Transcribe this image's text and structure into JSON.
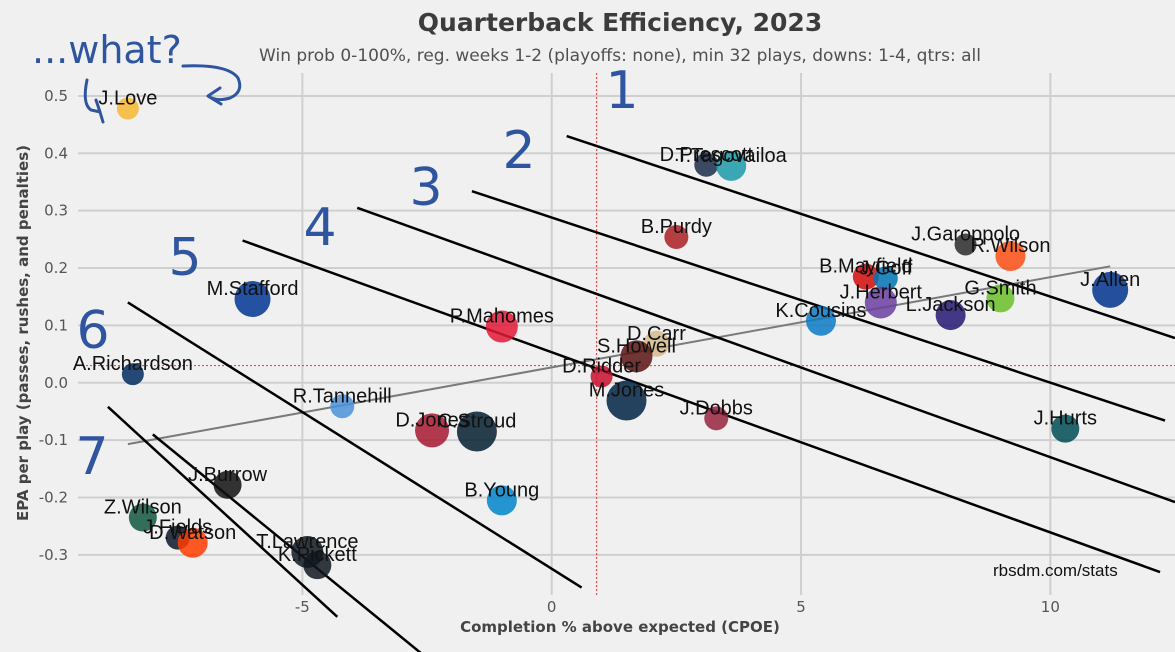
{
  "chart_data": {
    "type": "scatter",
    "title": "Quarterback Efficiency, 2023",
    "subtitle": "Win prob 0-100%, reg. weeks 1-2 (playoffs: none), min 32 plays, downs: 1-4, qtrs: all",
    "xlabel": "Completion % above expected (CPOE)",
    "ylabel": "EPA per play (passes, rushes, and penalties)",
    "xlim": [
      -9.5,
      12.5
    ],
    "ylim": [
      -0.37,
      0.54
    ],
    "xticks": [
      -5,
      0,
      5,
      10
    ],
    "yticks": [
      -0.3,
      -0.2,
      -0.1,
      0.0,
      0.1,
      0.2,
      0.3,
      0.4,
      0.5
    ],
    "xtick_labels": [
      "-5",
      "0",
      "5",
      "10"
    ],
    "ytick_labels": [
      "-0.3",
      "-0.2",
      "-0.1",
      "0.0",
      "0.1",
      "0.2",
      "0.3",
      "0.4",
      "0.5"
    ],
    "grid": true,
    "mean_x": 0.9,
    "mean_y": 0.03,
    "trend_line": [
      [
        -8.5,
        -0.107
      ],
      [
        11.2,
        0.203
      ]
    ],
    "points": [
      {
        "name": "J.Love",
        "x": -8.5,
        "y": 0.478,
        "size": 11,
        "color": "#f7b731"
      },
      {
        "name": "D.Prescott",
        "x": 3.1,
        "y": 0.38,
        "size": 12,
        "color": "#1c2b4a"
      },
      {
        "name": "T.Tagovailoa",
        "x": 3.6,
        "y": 0.378,
        "size": 15,
        "color": "#1b9aaa"
      },
      {
        "name": "B.Purdy",
        "x": 2.5,
        "y": 0.254,
        "size": 12,
        "color": "#aa1e23"
      },
      {
        "name": "J.Garoppolo",
        "x": 8.3,
        "y": 0.241,
        "size": 11,
        "color": "#2a2a2a"
      },
      {
        "name": "R.Wilson",
        "x": 9.2,
        "y": 0.221,
        "size": 15,
        "color": "#fb4f14"
      },
      {
        "name": "B.Mayfield",
        "x": 6.3,
        "y": 0.185,
        "size": 13,
        "color": "#d50a0a"
      },
      {
        "name": "J.Goff",
        "x": 6.7,
        "y": 0.182,
        "size": 12,
        "color": "#0076b6"
      },
      {
        "name": "G.Smith",
        "x": 9.0,
        "y": 0.147,
        "size": 14,
        "color": "#69be28"
      },
      {
        "name": "J.Allen",
        "x": 11.2,
        "y": 0.162,
        "size": 18,
        "color": "#00338d"
      },
      {
        "name": "K.Cousins",
        "x": 5.4,
        "y": 0.108,
        "size": 15,
        "color": "#0a7ac4"
      },
      {
        "name": "L.Jackson",
        "x": 8.0,
        "y": 0.118,
        "size": 15,
        "color": "#241773"
      },
      {
        "name": "M.Stafford",
        "x": -6.0,
        "y": 0.146,
        "size": 18,
        "color": "#003594"
      },
      {
        "name": "P.Mahomes",
        "x": -1.0,
        "y": 0.098,
        "size": 16,
        "color": "#e31837"
      },
      {
        "name": "D.Carr",
        "x": 2.1,
        "y": 0.068,
        "size": 13,
        "color": "#d3bc8d"
      },
      {
        "name": "J.Herbert",
        "x": 6.6,
        "y": 0.14,
        "size": 16,
        "color": "#6b3fa0"
      },
      {
        "name": "S.Howell",
        "x": 1.7,
        "y": 0.046,
        "size": 16,
        "color": "#5a1414"
      },
      {
        "name": "D.Ridder",
        "x": 1.0,
        "y": 0.011,
        "size": 11,
        "color": "#c8102e"
      },
      {
        "name": "A.Richardson",
        "x": -8.4,
        "y": 0.015,
        "size": 11,
        "color": "#002c5f"
      },
      {
        "name": "M.Jones",
        "x": 1.5,
        "y": -0.031,
        "size": 20,
        "color": "#002244"
      },
      {
        "name": "R.Tannehill",
        "x": -4.2,
        "y": -0.041,
        "size": 12,
        "color": "#4b92db"
      },
      {
        "name": "J.Dobbs",
        "x": 3.3,
        "y": -0.062,
        "size": 12,
        "color": "#97233f"
      },
      {
        "name": "J.Hurts",
        "x": 10.3,
        "y": -0.08,
        "size": 14,
        "color": "#004c54"
      },
      {
        "name": "D.Jones",
        "x": -2.4,
        "y": -0.083,
        "size": 17,
        "color": "#a71930"
      },
      {
        "name": "C.Stroud",
        "x": -1.5,
        "y": -0.085,
        "size": 20,
        "color": "#03202f"
      },
      {
        "name": "J.Burrow",
        "x": -6.5,
        "y": -0.178,
        "size": 14,
        "color": "#111111"
      },
      {
        "name": "B.Young",
        "x": -1.0,
        "y": -0.205,
        "size": 15,
        "color": "#0085ca"
      },
      {
        "name": "Z.Wilson",
        "x": -8.2,
        "y": -0.235,
        "size": 14,
        "color": "#125740"
      },
      {
        "name": "J.Fields",
        "x": -7.5,
        "y": -0.27,
        "size": 12,
        "color": "#0b162a"
      },
      {
        "name": "D.Watson",
        "x": -7.2,
        "y": -0.279,
        "size": 15,
        "color": "#ff3c00"
      },
      {
        "name": "T.Lawrence",
        "x": -4.9,
        "y": -0.295,
        "size": 16,
        "color": "#101820"
      },
      {
        "name": "K.Pickett",
        "x": -4.7,
        "y": -0.318,
        "size": 14,
        "color": "#101820"
      }
    ],
    "tier_lines": [
      {
        "label": "1",
        "x1": 0.3,
        "y1": 0.43,
        "x2": 12.5,
        "y2": 0.078
      },
      {
        "label": "2",
        "x1": -1.6,
        "y1": 0.334,
        "x2": 12.3,
        "y2": -0.066
      },
      {
        "label": "3",
        "x1": -3.9,
        "y1": 0.305,
        "x2": 12.5,
        "y2": -0.208
      },
      {
        "label": "4",
        "x1": -6.2,
        "y1": 0.248,
        "x2": 12.2,
        "y2": -0.33
      },
      {
        "label": "5",
        "x1": -8.5,
        "y1": 0.14,
        "x2": 0.6,
        "y2": -0.357
      },
      {
        "label": "6",
        "x1": -8.9,
        "y1": -0.042,
        "x2": -4.3,
        "y2": -0.408
      },
      {
        "label": "7",
        "x1": -8.0,
        "y1": -0.09,
        "x2": -2.5,
        "y2": -0.48
      }
    ],
    "tier_labels": [
      "1",
      "2",
      "3",
      "4",
      "5",
      "6",
      "7"
    ],
    "annotation": "...what?",
    "credit": "rbsdm.com/stats"
  }
}
